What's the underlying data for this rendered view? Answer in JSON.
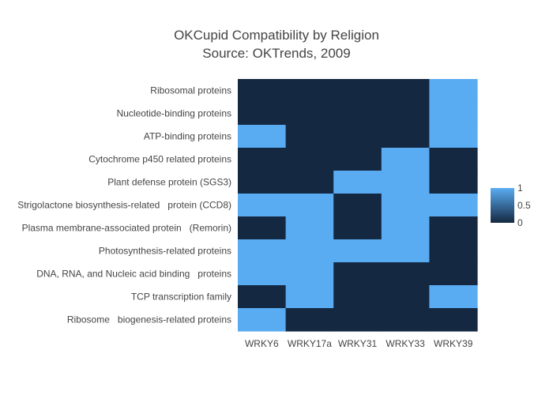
{
  "chart_data": {
    "type": "heatmap",
    "title_lines": [
      "OKCupid Compatibility by Religion",
      "Source: OKTrends, 2009"
    ],
    "x_categories": [
      "WRKY6",
      "WRKY17a",
      "WRKY31",
      "WRKY33",
      "WRKY39"
    ],
    "y_categories": [
      "Ribosomal proteins",
      "Nucleotide-binding proteins",
      "ATP-binding proteins",
      "Cytochrome p450 related proteins",
      "Plant defense protein (SGS3)",
      "Strigolactone biosynthesis-related   protein (CCD8)",
      "Plasma membrane-associated protein   (Remorin)",
      "Photosynthesis-related proteins",
      "DNA, RNA, and Nucleic acid binding   proteins",
      "TCP transcription family",
      "Ribosome   biogenesis-related proteins"
    ],
    "z": [
      [
        0,
        0,
        0,
        0,
        1
      ],
      [
        0,
        0,
        0,
        0,
        1
      ],
      [
        1,
        0,
        0,
        0,
        1
      ],
      [
        0,
        0,
        0,
        1,
        0
      ],
      [
        0,
        0,
        1,
        1,
        0
      ],
      [
        1,
        1,
        0,
        1,
        1
      ],
      [
        0,
        1,
        0,
        1,
        0
      ],
      [
        1,
        1,
        1,
        1,
        0
      ],
      [
        1,
        1,
        0,
        0,
        0
      ],
      [
        0,
        1,
        0,
        0,
        1
      ],
      [
        1,
        0,
        0,
        0,
        0
      ]
    ],
    "zlim": [
      0,
      1
    ],
    "colorscale": {
      "low": "#142841",
      "high": "#5aacf2"
    },
    "colorbar": {
      "ticks": [
        0,
        0.5,
        1
      ],
      "tick_labels": [
        "0",
        "0.5",
        "1"
      ]
    }
  }
}
